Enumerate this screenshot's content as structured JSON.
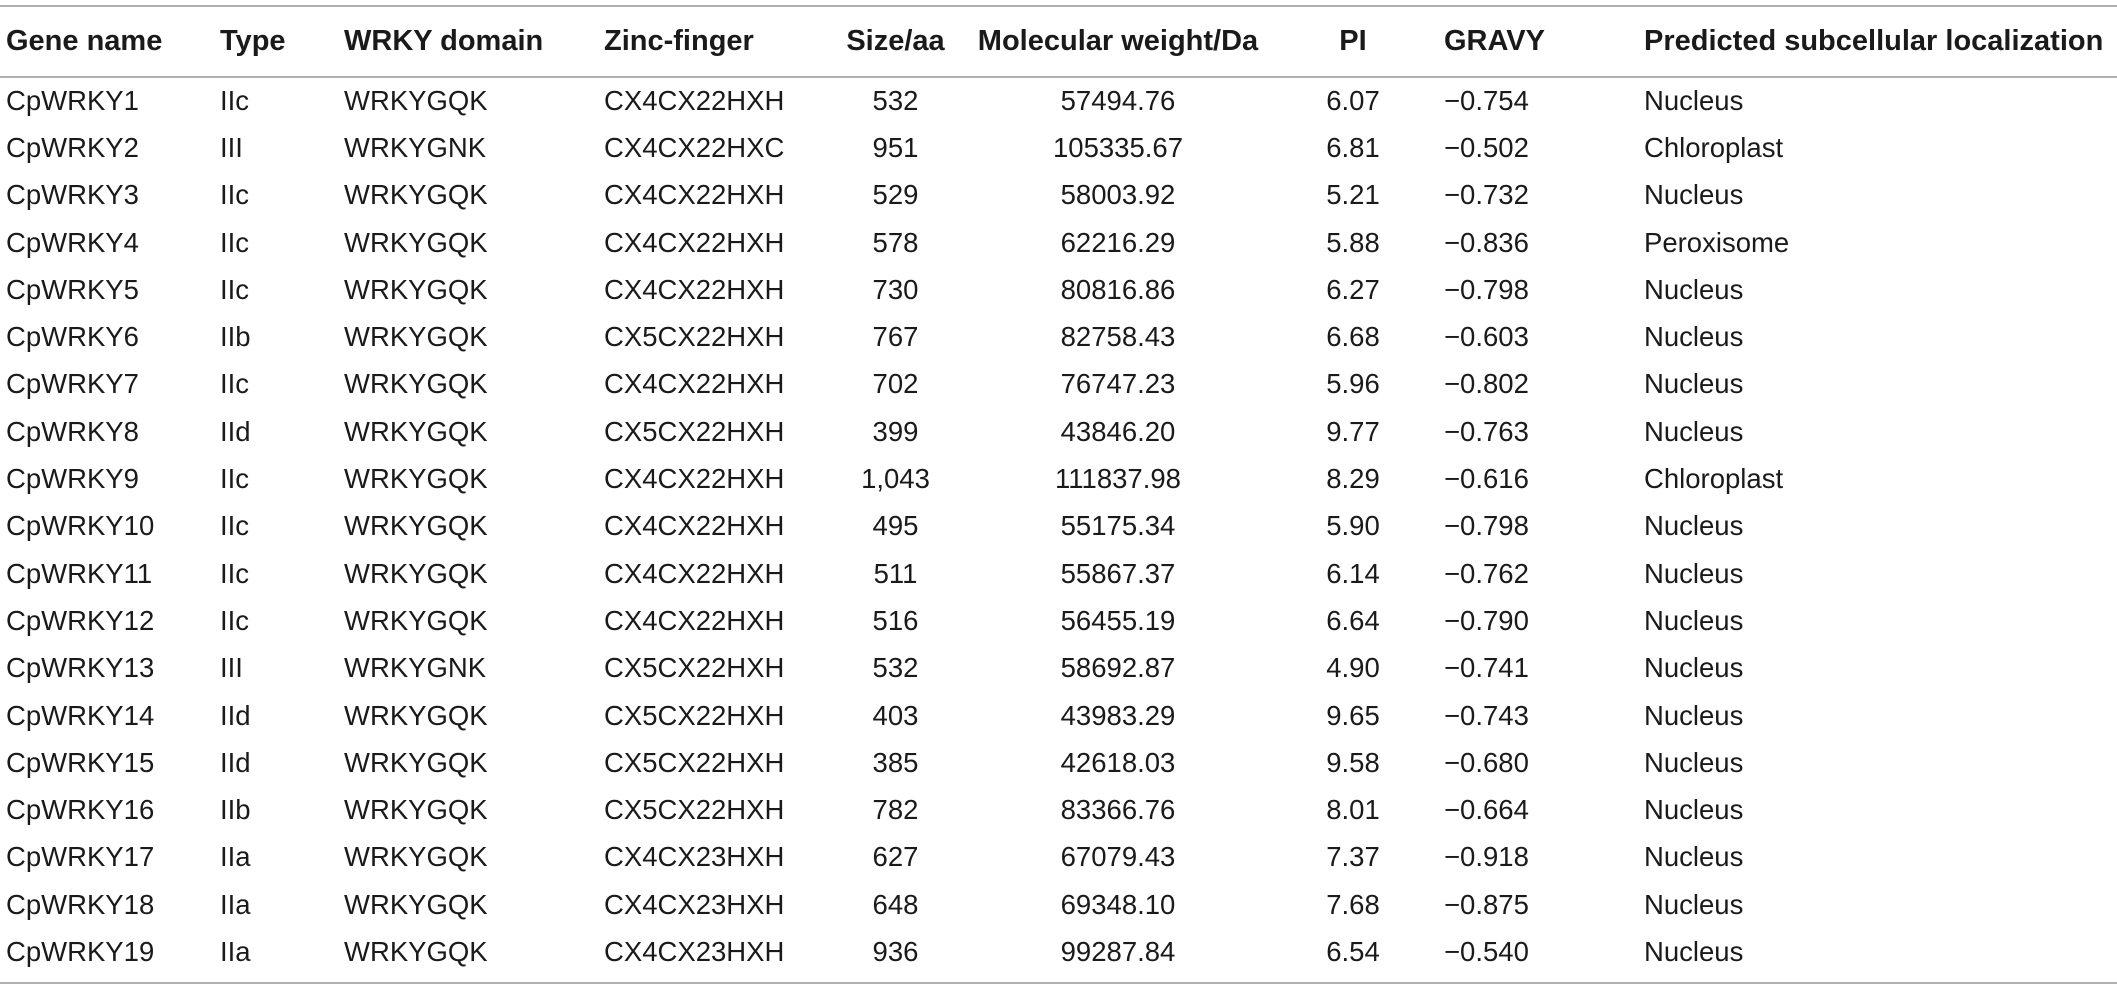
{
  "table": {
    "headers": [
      "Gene name",
      "Type",
      "WRKY domain",
      "Zinc-finger",
      "Size/aa",
      "Molecular weight/Da",
      "PI",
      "GRAVY",
      "Predicted subcellular localization"
    ],
    "rows": [
      [
        "CpWRKY1",
        "IIc",
        "WRKYGQK",
        "CX4CX22HXH",
        "532",
        "57494.76",
        "6.07",
        "−0.754",
        "Nucleus"
      ],
      [
        "CpWRKY2",
        "III",
        "WRKYGNK",
        "CX4CX22HXC",
        "951",
        "105335.67",
        "6.81",
        "−0.502",
        "Chloroplast"
      ],
      [
        "CpWRKY3",
        "IIc",
        "WRKYGQK",
        "CX4CX22HXH",
        "529",
        "58003.92",
        "5.21",
        "−0.732",
        "Nucleus"
      ],
      [
        "CpWRKY4",
        "IIc",
        "WRKYGQK",
        "CX4CX22HXH",
        "578",
        "62216.29",
        "5.88",
        "−0.836",
        "Peroxisome"
      ],
      [
        "CpWRKY5",
        "IIc",
        "WRKYGQK",
        "CX4CX22HXH",
        "730",
        "80816.86",
        "6.27",
        "−0.798",
        "Nucleus"
      ],
      [
        "CpWRKY6",
        "IIb",
        "WRKYGQK",
        "CX5CX22HXH",
        "767",
        "82758.43",
        "6.68",
        "−0.603",
        "Nucleus"
      ],
      [
        "CpWRKY7",
        "IIc",
        "WRKYGQK",
        "CX4CX22HXH",
        "702",
        "76747.23",
        "5.96",
        "−0.802",
        "Nucleus"
      ],
      [
        "CpWRKY8",
        "IId",
        "WRKYGQK",
        "CX5CX22HXH",
        "399",
        "43846.20",
        "9.77",
        "−0.763",
        "Nucleus"
      ],
      [
        "CpWRKY9",
        "IIc",
        "WRKYGQK",
        "CX4CX22HXH",
        "1,043",
        "111837.98",
        "8.29",
        "−0.616",
        "Chloroplast"
      ],
      [
        "CpWRKY10",
        "IIc",
        "WRKYGQK",
        "CX4CX22HXH",
        "495",
        "55175.34",
        "5.90",
        "−0.798",
        "Nucleus"
      ],
      [
        "CpWRKY11",
        "IIc",
        "WRKYGQK",
        "CX4CX22HXH",
        "511",
        "55867.37",
        "6.14",
        "−0.762",
        "Nucleus"
      ],
      [
        "CpWRKY12",
        "IIc",
        "WRKYGQK",
        "CX4CX22HXH",
        "516",
        "56455.19",
        "6.64",
        "−0.790",
        "Nucleus"
      ],
      [
        "CpWRKY13",
        "III",
        "WRKYGNK",
        "CX5CX22HXH",
        "532",
        "58692.87",
        "4.90",
        "−0.741",
        "Nucleus"
      ],
      [
        "CpWRKY14",
        "IId",
        "WRKYGQK",
        "CX5CX22HXH",
        "403",
        "43983.29",
        "9.65",
        "−0.743",
        "Nucleus"
      ],
      [
        "CpWRKY15",
        "IId",
        "WRKYGQK",
        "CX5CX22HXH",
        "385",
        "42618.03",
        "9.58",
        "−0.680",
        "Nucleus"
      ],
      [
        "CpWRKY16",
        "IIb",
        "WRKYGQK",
        "CX5CX22HXH",
        "782",
        "83366.76",
        "8.01",
        "−0.664",
        "Nucleus"
      ],
      [
        "CpWRKY17",
        "IIa",
        "WRKYGQK",
        "CX4CX23HXH",
        "627",
        "67079.43",
        "7.37",
        "−0.918",
        "Nucleus"
      ],
      [
        "CpWRKY18",
        "IIa",
        "WRKYGQK",
        "CX4CX23HXH",
        "648",
        "69348.10",
        "7.68",
        "−0.875",
        "Nucleus"
      ],
      [
        "CpWRKY19",
        "IIa",
        "WRKYGQK",
        "CX4CX23HXH",
        "936",
        "99287.84",
        "6.54",
        "−0.540",
        "Nucleus"
      ]
    ]
  },
  "colors": {
    "text": "#1a1a1a",
    "rule": "#b0b0b0",
    "background": "#ffffff"
  }
}
